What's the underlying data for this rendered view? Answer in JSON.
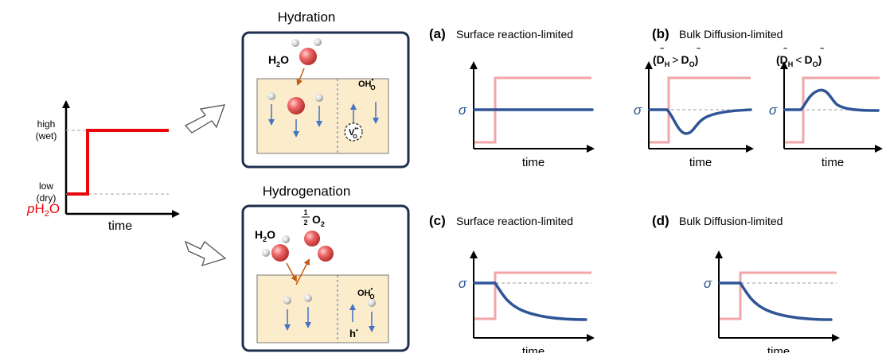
{
  "colors": {
    "step": "#e8070a",
    "step_faded": "#f2a6a8",
    "sigma": "#2f5597",
    "box_border": "#1f2f4f",
    "slab_fill": "#fbeccb",
    "arrow_orange": "#c55a11",
    "blue_arrow": "#4472c4",
    "oxygen": "#e95a5a",
    "hydrogen": "#d6d6d6",
    "dash_gray": "#9a9a9a"
  },
  "left_plot": {
    "ylabel_p": "p",
    "ylabel_rest": "H",
    "ylabel_sub": "2",
    "ylabel_end": "O",
    "high_line1": "high",
    "high_line2": "(wet)",
    "low_line1": "low",
    "low_line2": "(dry)",
    "xlabel": "time"
  },
  "hydration": {
    "title": "Hydration",
    "h2o": "H",
    "h2o_sub": "2",
    "h2o_end": "O",
    "oh_label": "OH",
    "oh_sup": "•",
    "oh_sub": "O",
    "vac_label": "V",
    "vac_sup": "••",
    "vac_sub": "O"
  },
  "hydrogenation": {
    "title": "Hydrogenation",
    "h2o": "H",
    "h2o_sub": "2",
    "h2o_end": "O",
    "o2_num": "1",
    "o2_den": "2",
    "o2_label": "O",
    "o2_sub": "2",
    "oh_label": "OH",
    "oh_sup": "•",
    "oh_sub": "O",
    "hole_label": "h",
    "hole_sup": "•"
  },
  "panels": {
    "a": {
      "letter": "(a)",
      "title": "Surface reaction-limited"
    },
    "b": {
      "letter": "(b)",
      "title": "Bulk Diffusion-limited",
      "cond1_lhs": "D",
      "cond1_lhs_sub": "H",
      "cond1_op": ">",
      "cond1_rhs": "D",
      "cond1_rhs_sub": "O",
      "cond2_lhs": "D",
      "cond2_lhs_sub": "H",
      "cond2_op": "<",
      "cond2_rhs": "D",
      "cond2_rhs_sub": "O"
    },
    "c": {
      "letter": "(c)",
      "title": "Surface reaction-limited"
    },
    "d": {
      "letter": "(d)",
      "title": "Bulk Diffusion-limited"
    }
  },
  "sigma": "σ",
  "time": "time"
}
